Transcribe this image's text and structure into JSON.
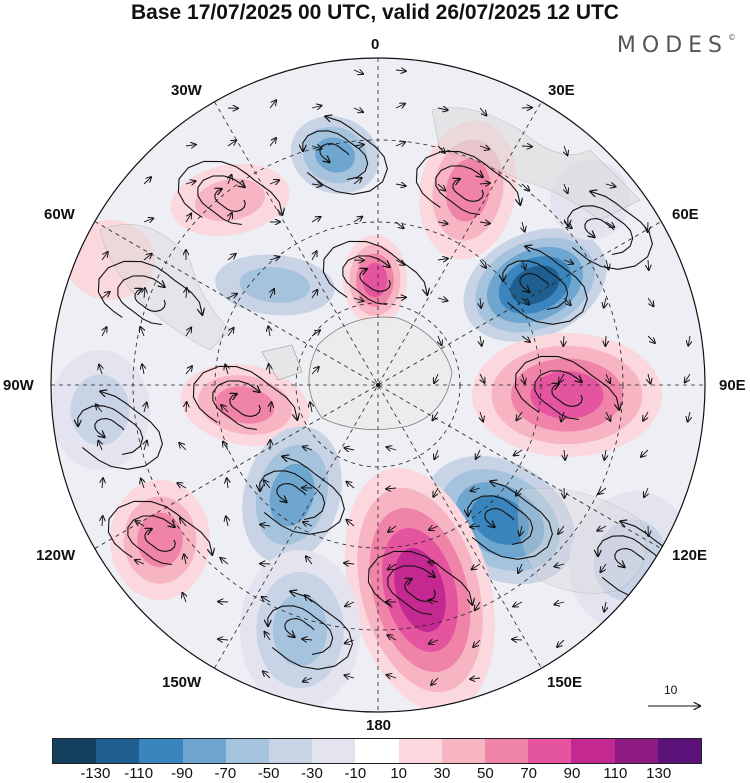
{
  "title": "Base 17/07/2025 00 UTC, valid 26/07/2025 12 UTC",
  "brand": "MODES",
  "brand_mark": "©",
  "longitude_labels": {
    "lon_0": "0",
    "lon_30e": "30E",
    "lon_60e": "60E",
    "lon_90e": "90E",
    "lon_120e": "120E",
    "lon_150e": "150E",
    "lon_180": "180",
    "lon_150w": "150W",
    "lon_120w": "120W",
    "lon_90w": "90W",
    "lon_60w": "60W",
    "lon_30w": "30W"
  },
  "reference_vector_label": "10",
  "colorbar": {
    "colors": [
      "#143f5e",
      "#1f5f8f",
      "#3a85bd",
      "#6fa6cf",
      "#a6c3dd",
      "#c9d3e6",
      "#e4e4f0",
      "#ffffff",
      "#fbd8dd",
      "#f7b4c3",
      "#f083a8",
      "#e5559f",
      "#c42891",
      "#8e1a84",
      "#5a1178"
    ],
    "ticks": [
      "-130",
      "-110",
      "-90",
      "-70",
      "-50",
      "-30",
      "-10",
      "10",
      "30",
      "50",
      "70",
      "90",
      "110",
      "130"
    ]
  }
}
